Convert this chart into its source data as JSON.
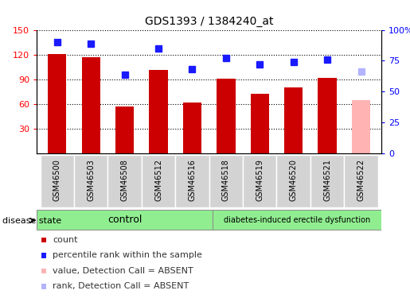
{
  "title": "GDS1393 / 1384240_at",
  "samples": [
    "GSM46500",
    "GSM46503",
    "GSM46508",
    "GSM46512",
    "GSM46516",
    "GSM46518",
    "GSM46519",
    "GSM46520",
    "GSM46521",
    "GSM46522"
  ],
  "counts": [
    121,
    117,
    57,
    101,
    62,
    91,
    72,
    80,
    92,
    65
  ],
  "percentile_ranks": [
    90,
    89,
    64,
    85,
    68,
    77,
    72,
    74,
    76,
    66
  ],
  "absent_flags": [
    false,
    false,
    false,
    false,
    false,
    false,
    false,
    false,
    false,
    true
  ],
  "n_control": 5,
  "bar_color_present": "#cc0000",
  "bar_color_absent": "#ffb3b3",
  "rank_color_present": "#1a1aff",
  "rank_color_absent": "#b3b3ff",
  "ylim_left": [
    0,
    150
  ],
  "ylim_right": [
    0,
    100
  ],
  "yticks_left": [
    30,
    60,
    90,
    120,
    150
  ],
  "yticks_right": [
    0,
    25,
    50,
    75,
    100
  ],
  "ytick_labels_right": [
    "0",
    "25",
    "50",
    "75",
    "100%"
  ],
  "control_label": "control",
  "disease_label": "diabetes-induced erectile dysfunction",
  "disease_state_label": "disease state",
  "legend_items": [
    {
      "label": "count",
      "color": "#cc0000"
    },
    {
      "label": "percentile rank within the sample",
      "color": "#1a1aff"
    },
    {
      "label": "value, Detection Call = ABSENT",
      "color": "#ffb3b3"
    },
    {
      "label": "rank, Detection Call = ABSENT",
      "color": "#b3b3ff"
    }
  ],
  "control_bg": "#90ee90",
  "disease_bg": "#90ee90",
  "bar_width": 0.55,
  "rank_marker_size": 6,
  "label_box_color": "#d3d3d3",
  "fig_bg": "#ffffff"
}
